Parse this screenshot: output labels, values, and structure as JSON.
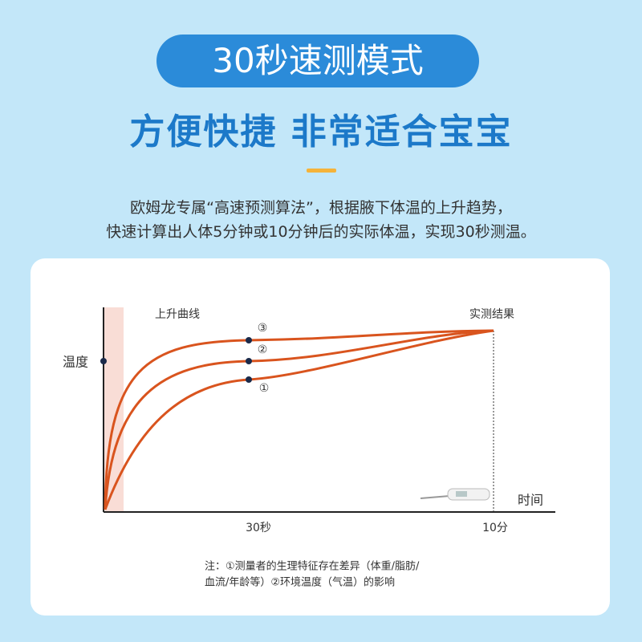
{
  "badge": "30秒速测模式",
  "headline": "方便快捷 非常适合宝宝",
  "description": [
    "欧姆龙专属“高速预测算法”，根据腋下体温的上升趋势，",
    "快速计算出人体5分钟或10分钟后的实际体温，实现30秒测温。"
  ],
  "diagram": {
    "curve_title": "上升曲线",
    "result_label": "实测结果",
    "y_label": "温度",
    "x_label": "时间",
    "x_ticks": [
      "30秒",
      "10分"
    ],
    "curve_labels": [
      "③",
      "②",
      "①"
    ],
    "note": [
      "注：①测量者的生理特征存在差异（体重/脂肪/",
      "血流/年龄等）②环境温度（气温）的影响"
    ]
  }
}
